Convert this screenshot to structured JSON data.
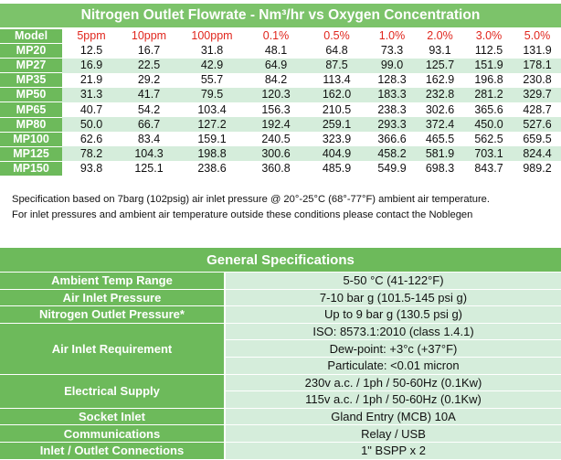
{
  "flow": {
    "title": "Nitrogen Outlet Flowrate - Nm³/hr vs Oxygen Concentration",
    "model_label": "Model",
    "columns": [
      "5ppm",
      "10ppm",
      "100ppm",
      "0.1%",
      "0.5%",
      "1.0%",
      "2.0%",
      "3.0%",
      "5.0%"
    ],
    "rows": [
      {
        "model": "MP20",
        "values": [
          "12.5",
          "16.7",
          "31.8",
          "48.1",
          "64.8",
          "73.3",
          "93.1",
          "112.5",
          "131.9"
        ]
      },
      {
        "model": "MP27",
        "values": [
          "16.9",
          "22.5",
          "42.9",
          "64.9",
          "87.5",
          "99.0",
          "125.7",
          "151.9",
          "178.1"
        ]
      },
      {
        "model": "MP35",
        "values": [
          "21.9",
          "29.2",
          "55.7",
          "84.2",
          "113.4",
          "128.3",
          "162.9",
          "196.8",
          "230.8"
        ]
      },
      {
        "model": "MP50",
        "values": [
          "31.3",
          "41.7",
          "79.5",
          "120.3",
          "162.0",
          "183.3",
          "232.8",
          "281.2",
          "329.7"
        ]
      },
      {
        "model": "MP65",
        "values": [
          "40.7",
          "54.2",
          "103.4",
          "156.3",
          "210.5",
          "238.3",
          "302.6",
          "365.6",
          "428.7"
        ]
      },
      {
        "model": "MP80",
        "values": [
          "50.0",
          "66.7",
          "127.2",
          "192.4",
          "259.1",
          "293.3",
          "372.4",
          "450.0",
          "527.6"
        ]
      },
      {
        "model": "MP100",
        "values": [
          "62.6",
          "83.4",
          "159.1",
          "240.5",
          "323.9",
          "366.6",
          "465.5",
          "562.5",
          "659.5"
        ]
      },
      {
        "model": "MP125",
        "values": [
          "78.2",
          "104.3",
          "198.8",
          "300.6",
          "404.9",
          "458.2",
          "581.9",
          "703.1",
          "824.4"
        ]
      },
      {
        "model": "MP150",
        "values": [
          "93.8",
          "125.1",
          "238.6",
          "360.8",
          "485.9",
          "549.9",
          "698.3",
          "843.7",
          "989.2"
        ]
      }
    ]
  },
  "notes": [
    "Specification based on 7barg (102psig) air inlet pressure @ 20°-25°C (68°-77°F) ambient air temperature.",
    "For inlet pressures and ambient air temperature outside these conditions please contact the Noblegen"
  ],
  "specs": {
    "title": "General Specifications",
    "items": [
      {
        "label": "Ambient Temp Range",
        "values": [
          "5-50 °C (41-122°F)"
        ]
      },
      {
        "label": "Air Inlet Pressure",
        "values": [
          "7-10 bar g (101.5-145 psi g)"
        ]
      },
      {
        "label": "Nitrogen Outlet Pressure*",
        "values": [
          "Up to 9 bar g (130.5 psi g)"
        ]
      },
      {
        "label": "Air Inlet Requirement",
        "values": [
          "ISO: 8573.1:2010 (class 1.4.1)",
          "Dew-point: +3°c (+37°F)",
          "Particulate: <0.01 micron"
        ]
      },
      {
        "label": "Electrical Supply",
        "values": [
          "230v a.c. / 1ph / 50-60Hz (0.1Kw)",
          "115v a.c. / 1ph / 50-60Hz (0.1Kw)"
        ]
      },
      {
        "label": "Socket Inlet",
        "values": [
          "Gland Entry (MCB) 10A"
        ]
      },
      {
        "label": "Communications",
        "values": [
          "Relay / USB"
        ]
      },
      {
        "label": "Inlet / Outlet Connections",
        "values": [
          "1\" BSPP x 2"
        ]
      }
    ]
  }
}
